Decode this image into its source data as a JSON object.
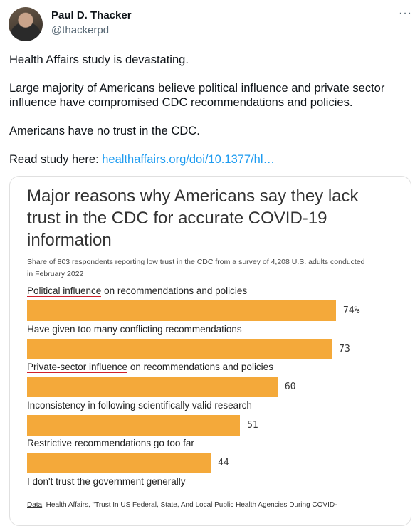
{
  "tweet": {
    "display_name": "Paul D. Thacker",
    "handle": "@thackerpd",
    "more_icon": "more-horizontal-icon",
    "paragraphs": [
      "Health Affairs study is devastating.",
      "Large majority of Americans believe political influence and private sector influence have compromised CDC recommendations and policies.",
      "Americans have no trust in the CDC."
    ],
    "read_prefix": "Read study here: ",
    "link_text": "healthaffairs.org/doi/10.1377/hl…"
  },
  "chart_data": {
    "type": "bar",
    "title": "Major reasons why Americans say they lack trust in the CDC for accurate COVID-19 information",
    "subtitle": "Share of 803 respondents reporting low trust in the CDC from a survey of 4,208 U.S. adults conducted in February 2022",
    "categories": [
      "Political influence on recommendations and policies",
      "Have given too many conflicting recommendations",
      "Private-sector influence on recommendations and policies",
      "Inconsistency in following scientifically valid research",
      "Restrictive recommendations go too far",
      "I don't trust the government generally"
    ],
    "values": [
      74,
      73,
      60,
      51,
      44,
      null
    ],
    "value_labels": [
      "74%",
      "73",
      "60",
      "51",
      "44",
      ""
    ],
    "bar_color": "#f4a93a",
    "underlined_phrases": [
      "Political influence",
      "Private-sector influence"
    ],
    "source_key": "Data",
    "source_text": ": Health Affairs, \"Trust In US Federal, State, And Local Public Health Agencies During COVID-"
  }
}
